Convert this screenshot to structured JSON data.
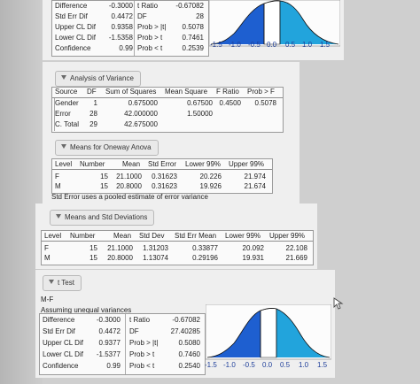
{
  "top_ttest": {
    "rows": [
      [
        "Difference",
        "-0.3000",
        "t Ratio",
        "-0.67082"
      ],
      [
        "Std Err Dif",
        "0.4472",
        "DF",
        "28"
      ],
      [
        "Upper CL Dif",
        "0.9358",
        "Prob > |t|",
        "0.5078"
      ],
      [
        "Lower CL Dif",
        "-1.5358",
        "Prob > t",
        "0.7461"
      ],
      [
        "Confidence",
        "0.99",
        "Prob < t",
        "0.2539"
      ]
    ],
    "axis": [
      "-1.5",
      "-1.0",
      "-0.5",
      "0.0",
      "0.5",
      "1.0",
      "1.5"
    ]
  },
  "anova": {
    "header": "Analysis of Variance",
    "columns": [
      "Source",
      "DF",
      "Sum of Squares",
      "Mean Square",
      "F Ratio",
      "Prob > F"
    ],
    "rows": [
      [
        "Gender",
        "1",
        "0.675000",
        "0.67500",
        "0.4500",
        "0.5078"
      ],
      [
        "Error",
        "28",
        "42.000000",
        "1.50000",
        "",
        ""
      ],
      [
        "C. Total",
        "29",
        "42.675000",
        "",
        "",
        ""
      ]
    ]
  },
  "means_oneway": {
    "header": "Means for Oneway Anova",
    "columns": [
      "Level",
      "Number",
      "Mean",
      "Std Error",
      "Lower 99%",
      "Upper 99%"
    ],
    "rows": [
      [
        "F",
        "15",
        "21.1000",
        "0.31623",
        "20.226",
        "21.974"
      ],
      [
        "M",
        "15",
        "20.8000",
        "0.31623",
        "19.926",
        "21.674"
      ]
    ],
    "note": "Std Error uses a pooled estimate of error variance"
  },
  "means_std": {
    "header": "Means and Std Deviations",
    "columns": [
      "Level",
      "Number",
      "Mean",
      "Std Dev",
      "Std Err Mean",
      "Lower 99%",
      "Upper 99%"
    ],
    "rows": [
      [
        "F",
        "15",
        "21.1000",
        "1.31203",
        "0.33877",
        "20.092",
        "22.108"
      ],
      [
        "M",
        "15",
        "20.8000",
        "1.13074",
        "0.29196",
        "19.931",
        "21.669"
      ]
    ]
  },
  "ttest": {
    "header": "t Test",
    "comparison": "M-F",
    "assumption": "Assuming unequal variances",
    "rows": [
      [
        "Difference",
        "-0.3000",
        "t Ratio",
        "-0.67082"
      ],
      [
        "Std Err Dif",
        "0.4472",
        "DF",
        "27.40285"
      ],
      [
        "Upper CL Dif",
        "0.9377",
        "Prob > |t|",
        "0.5080"
      ],
      [
        "Lower CL Dif",
        "-1.5377",
        "Prob > t",
        "0.7460"
      ],
      [
        "Confidence",
        "0.99",
        "Prob < t",
        "0.2540"
      ]
    ],
    "axis": [
      "-1.5",
      "-1.0",
      "-0.5",
      "0.0",
      "0.5",
      "1.0",
      "1.5"
    ]
  },
  "colors": {
    "tail_blue": "#1e5fd0",
    "right_tail_blue": "#22a4dc",
    "axis_label_blue": "#1f3f9a"
  },
  "icons": [
    "disclosure-triangle-icon",
    "cursor-pointer-icon"
  ]
}
